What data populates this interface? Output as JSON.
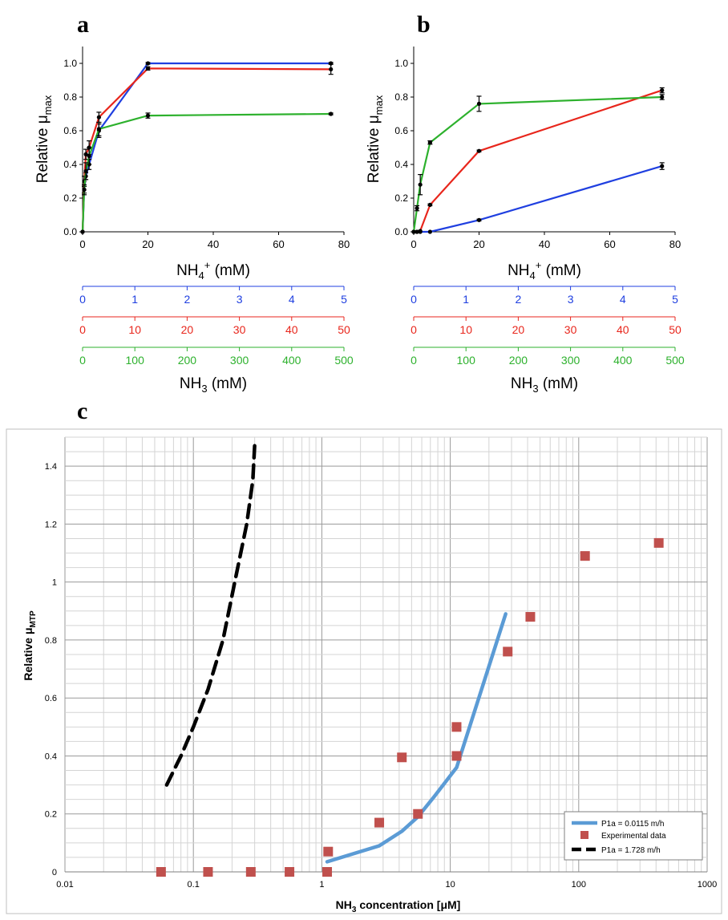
{
  "panel_letters": [
    "a",
    "b",
    "c"
  ],
  "colors": {
    "blue": "#1f3fe0",
    "red": "#e8261c",
    "green": "#2db12d",
    "c_line": "#5b9bd5",
    "c_marker": "#c0504d"
  },
  "chart_data": [
    {
      "panel": "a",
      "type": "line",
      "xlabel_main": "NH",
      "xlabel_sub": "4",
      "xlabel_sup": "+",
      "xlabel_unit": " (mM)",
      "ylabel_main": "Relative μ",
      "ylabel_sub": "max",
      "xlim": [
        0,
        80
      ],
      "ylim": [
        0,
        1.1
      ],
      "xticks": [
        0,
        20,
        40,
        60,
        80
      ],
      "yticks": [
        0.0,
        0.2,
        0.4,
        0.6,
        0.8,
        1.0
      ],
      "x_tick_labels": [
        "0",
        "20",
        "40",
        "60",
        "80"
      ],
      "y_tick_labels": [
        "0.0",
        "0.2",
        "0.4",
        "0.6",
        "0.8",
        "1.0"
      ],
      "series": [
        {
          "color": "blue",
          "x": [
            0,
            0.5,
            1,
            2,
            5,
            20,
            76
          ],
          "y": [
            0,
            0.25,
            0.33,
            0.4,
            0.6,
            1.0,
            1.0
          ],
          "err": [
            0,
            0.02,
            0.02,
            0.03,
            0.04,
            0.005,
            0.005
          ]
        },
        {
          "color": "red",
          "x": [
            0,
            0.5,
            1,
            2,
            5,
            20,
            76
          ],
          "y": [
            0,
            0.3,
            0.46,
            0.5,
            0.68,
            0.97,
            0.965
          ],
          "err": [
            0,
            0.03,
            0.03,
            0.04,
            0.03,
            0.01,
            0.03
          ]
        },
        {
          "color": "green",
          "x": [
            0,
            0.5,
            1,
            2,
            5,
            20,
            76
          ],
          "y": [
            0,
            0.25,
            0.36,
            0.45,
            0.61,
            0.69,
            0.7
          ],
          "err": [
            0,
            0.03,
            0.05,
            0.05,
            0.04,
            0.015,
            0.005
          ]
        }
      ],
      "secondary_axes": [
        {
          "color": "blue",
          "ticks": [
            "0",
            "1",
            "2",
            "3",
            "4",
            "5"
          ]
        },
        {
          "color": "red",
          "ticks": [
            "0",
            "10",
            "20",
            "30",
            "40",
            "50"
          ]
        },
        {
          "color": "green",
          "ticks": [
            "0",
            "100",
            "200",
            "300",
            "400",
            "500"
          ]
        }
      ],
      "sec_label_main": "NH",
      "sec_label_sub": "3",
      "sec_label_unit": " (mM)"
    },
    {
      "panel": "b",
      "type": "line",
      "xlabel_main": "NH",
      "xlabel_sub": "4",
      "xlabel_sup": "+",
      "xlabel_unit": " (mM)",
      "ylabel_main": "Relative μ",
      "ylabel_sub": "max",
      "xlim": [
        0,
        80
      ],
      "ylim": [
        0,
        1.1
      ],
      "xticks": [
        0,
        20,
        40,
        60,
        80
      ],
      "yticks": [
        0.0,
        0.2,
        0.4,
        0.6,
        0.8,
        1.0
      ],
      "x_tick_labels": [
        "0",
        "20",
        "40",
        "60",
        "80"
      ],
      "y_tick_labels": [
        "0.0",
        "0.2",
        "0.4",
        "0.6",
        "0.8",
        "1.0"
      ],
      "series": [
        {
          "color": "blue",
          "x": [
            0,
            1,
            2,
            5,
            20,
            76
          ],
          "y": [
            0,
            0,
            0,
            0,
            0.07,
            0.39
          ],
          "err": [
            0,
            0,
            0,
            0,
            0.005,
            0.02
          ]
        },
        {
          "color": "red",
          "x": [
            0,
            1,
            2,
            5,
            20,
            76
          ],
          "y": [
            0,
            0,
            0.005,
            0.16,
            0.48,
            0.84
          ],
          "err": [
            0,
            0,
            0,
            0.005,
            0.005,
            0.015
          ]
        },
        {
          "color": "green",
          "x": [
            0,
            1,
            2,
            5,
            20,
            76
          ],
          "y": [
            0,
            0.14,
            0.28,
            0.53,
            0.76,
            0.8
          ],
          "err": [
            0,
            0.015,
            0.06,
            0.01,
            0.045,
            0.015
          ]
        }
      ],
      "secondary_axes": [
        {
          "color": "blue",
          "ticks": [
            "0",
            "1",
            "2",
            "3",
            "4",
            "5"
          ]
        },
        {
          "color": "red",
          "ticks": [
            "0",
            "10",
            "20",
            "30",
            "40",
            "50"
          ]
        },
        {
          "color": "green",
          "ticks": [
            "0",
            "100",
            "200",
            "300",
            "400",
            "500"
          ]
        }
      ],
      "sec_label_main": "NH",
      "sec_label_sub": "3",
      "sec_label_unit": " (mM)"
    },
    {
      "panel": "c",
      "type": "scatter",
      "xscale": "log",
      "xlim": [
        0.01,
        1000
      ],
      "ylim": [
        0,
        1.5
      ],
      "xticks": [
        0.01,
        0.1,
        1,
        10,
        100,
        1000
      ],
      "x_tick_labels": [
        "0.01",
        "0.1",
        "1",
        "10",
        "100",
        "1000"
      ],
      "yticks": [
        0,
        0.2,
        0.4,
        0.6,
        0.8,
        1,
        1.2,
        1.4
      ],
      "y_tick_labels": [
        "0",
        "0.2",
        "0.4",
        "0.6",
        "0.8",
        "1",
        "1.2",
        "1.4"
      ],
      "xlabel_main": "NH",
      "xlabel_sub": "3",
      "xlabel_unit": " concentration [μM]",
      "ylabel_main": "Relative μ",
      "ylabel_sub": "MTP",
      "grid": true,
      "legend_position": "bottom-right",
      "series": [
        {
          "name": "P1a = 0.0115 m/h",
          "kind": "line",
          "color": "c_line",
          "x": [
            1.1,
            2.8,
            4.2,
            5.6,
            7.5,
            11.2,
            27
          ],
          "y": [
            0.035,
            0.09,
            0.14,
            0.19,
            0.26,
            0.36,
            0.89
          ]
        },
        {
          "name": "Experimental data",
          "kind": "marker",
          "color": "c_marker",
          "x": [
            0.056,
            0.13,
            0.28,
            0.56,
            1.1,
            1.12,
            2.8,
            4.2,
            5.6,
            11.2,
            11.2,
            28,
            42,
            112,
            420
          ],
          "y": [
            0,
            0,
            0,
            0,
            0,
            0.07,
            0.17,
            0.395,
            0.2,
            0.4,
            0.5,
            0.76,
            0.88,
            1.09,
            1.135
          ]
        },
        {
          "name": "P1a = 1.728 m/h",
          "kind": "dashed",
          "color": "#000000",
          "x": [
            0.062,
            0.08,
            0.1,
            0.13,
            0.17,
            0.21,
            0.26,
            0.29,
            0.3
          ],
          "y": [
            0.3,
            0.4,
            0.5,
            0.63,
            0.8,
            1.0,
            1.2,
            1.35,
            1.47
          ]
        }
      ]
    }
  ]
}
